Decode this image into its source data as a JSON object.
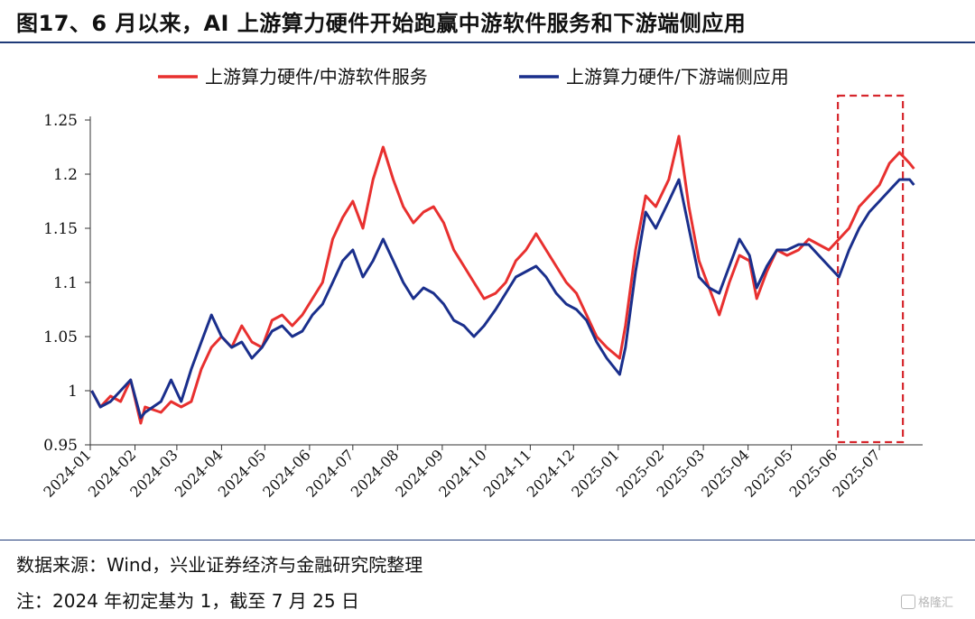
{
  "title": "图17、6 月以来，AI 上游算力硬件开始跑赢中游软件服务和下游端侧应用",
  "source": "数据来源：Wind，兴业证券经济与金融研究院整理",
  "note": "注：2024 年初定基为 1，截至 7 月 25 日",
  "watermark": "格隆汇",
  "colors": {
    "series_red": "#e8302f",
    "series_blue": "#1a2f8c",
    "highlight_box": "#d6262c",
    "rule": "#1f3a78"
  },
  "chart_data": {
    "type": "line",
    "title": "",
    "xlabel": "",
    "ylabel": "",
    "ylim": [
      0.95,
      1.25
    ],
    "yticks": [
      "0.95",
      "1",
      "1.05",
      "1.1",
      "1.15",
      "1.2",
      "1.25"
    ],
    "xticks": [
      "2024-01",
      "2024-02",
      "2024-03",
      "2024-04",
      "2024-05",
      "2024-06",
      "2024-07",
      "2024-08",
      "2024-09",
      "2024-10",
      "2024-11",
      "2024-12",
      "2025-01",
      "2025-02",
      "2025-03",
      "2025-04",
      "2025-05",
      "2025-06",
      "2025-07"
    ],
    "legend_position": "top",
    "grid": false,
    "highlight_region": {
      "from": "2025-06",
      "to": "2025-07-25"
    },
    "series": [
      {
        "name": "上游算力硬件/中游软件服务",
        "color": "#e8302f",
        "points": [
          [
            "2024-01-02",
            1.0
          ],
          [
            "2024-01-08",
            0.985
          ],
          [
            "2024-01-15",
            0.995
          ],
          [
            "2024-01-22",
            0.99
          ],
          [
            "2024-01-29",
            1.01
          ],
          [
            "2024-02-05",
            0.97
          ],
          [
            "2024-02-08",
            0.985
          ],
          [
            "2024-02-19",
            0.98
          ],
          [
            "2024-02-26",
            0.99
          ],
          [
            "2024-03-04",
            0.985
          ],
          [
            "2024-03-11",
            0.99
          ],
          [
            "2024-03-18",
            1.02
          ],
          [
            "2024-03-25",
            1.04
          ],
          [
            "2024-04-01",
            1.05
          ],
          [
            "2024-04-08",
            1.04
          ],
          [
            "2024-04-15",
            1.06
          ],
          [
            "2024-04-22",
            1.045
          ],
          [
            "2024-04-29",
            1.04
          ],
          [
            "2024-05-06",
            1.065
          ],
          [
            "2024-05-13",
            1.07
          ],
          [
            "2024-05-20",
            1.06
          ],
          [
            "2024-05-27",
            1.07
          ],
          [
            "2024-06-03",
            1.085
          ],
          [
            "2024-06-10",
            1.1
          ],
          [
            "2024-06-17",
            1.14
          ],
          [
            "2024-06-24",
            1.16
          ],
          [
            "2024-07-01",
            1.175
          ],
          [
            "2024-07-08",
            1.15
          ],
          [
            "2024-07-15",
            1.195
          ],
          [
            "2024-07-22",
            1.225
          ],
          [
            "2024-07-29",
            1.195
          ],
          [
            "2024-08-05",
            1.17
          ],
          [
            "2024-08-12",
            1.155
          ],
          [
            "2024-08-19",
            1.165
          ],
          [
            "2024-08-26",
            1.17
          ],
          [
            "2024-09-02",
            1.155
          ],
          [
            "2024-09-09",
            1.13
          ],
          [
            "2024-09-16",
            1.115
          ],
          [
            "2024-09-23",
            1.1
          ],
          [
            "2024-09-30",
            1.085
          ],
          [
            "2024-10-08",
            1.09
          ],
          [
            "2024-10-15",
            1.1
          ],
          [
            "2024-10-22",
            1.12
          ],
          [
            "2024-10-29",
            1.13
          ],
          [
            "2024-11-05",
            1.145
          ],
          [
            "2024-11-12",
            1.13
          ],
          [
            "2024-11-19",
            1.115
          ],
          [
            "2024-11-26",
            1.1
          ],
          [
            "2024-12-03",
            1.09
          ],
          [
            "2024-12-10",
            1.07
          ],
          [
            "2024-12-17",
            1.05
          ],
          [
            "2024-12-24",
            1.04
          ],
          [
            "2025-01-02",
            1.03
          ],
          [
            "2025-01-06",
            1.06
          ],
          [
            "2025-01-13",
            1.13
          ],
          [
            "2025-01-20",
            1.18
          ],
          [
            "2025-01-27",
            1.17
          ],
          [
            "2025-02-05",
            1.195
          ],
          [
            "2025-02-12",
            1.235
          ],
          [
            "2025-02-19",
            1.17
          ],
          [
            "2025-02-26",
            1.12
          ],
          [
            "2025-03-05",
            1.095
          ],
          [
            "2025-03-12",
            1.07
          ],
          [
            "2025-03-19",
            1.1
          ],
          [
            "2025-03-26",
            1.125
          ],
          [
            "2025-04-02",
            1.12
          ],
          [
            "2025-04-07",
            1.085
          ],
          [
            "2025-04-14",
            1.11
          ],
          [
            "2025-04-21",
            1.13
          ],
          [
            "2025-04-28",
            1.125
          ],
          [
            "2025-05-06",
            1.13
          ],
          [
            "2025-05-13",
            1.14
          ],
          [
            "2025-05-20",
            1.135
          ],
          [
            "2025-05-27",
            1.13
          ],
          [
            "2025-06-03",
            1.14
          ],
          [
            "2025-06-10",
            1.15
          ],
          [
            "2025-06-17",
            1.17
          ],
          [
            "2025-06-24",
            1.18
          ],
          [
            "2025-07-01",
            1.19
          ],
          [
            "2025-07-08",
            1.21
          ],
          [
            "2025-07-15",
            1.22
          ],
          [
            "2025-07-22",
            1.21
          ],
          [
            "2025-07-25",
            1.205
          ]
        ]
      },
      {
        "name": "上游算力硬件/下游端侧应用",
        "color": "#1a2f8c",
        "points": [
          [
            "2024-01-02",
            1.0
          ],
          [
            "2024-01-08",
            0.985
          ],
          [
            "2024-01-15",
            0.99
          ],
          [
            "2024-01-22",
            1.0
          ],
          [
            "2024-01-29",
            1.01
          ],
          [
            "2024-02-05",
            0.975
          ],
          [
            "2024-02-08",
            0.98
          ],
          [
            "2024-02-19",
            0.99
          ],
          [
            "2024-02-26",
            1.01
          ],
          [
            "2024-03-04",
            0.99
          ],
          [
            "2024-03-11",
            1.02
          ],
          [
            "2024-03-18",
            1.045
          ],
          [
            "2024-03-25",
            1.07
          ],
          [
            "2024-04-01",
            1.05
          ],
          [
            "2024-04-08",
            1.04
          ],
          [
            "2024-04-15",
            1.045
          ],
          [
            "2024-04-22",
            1.03
          ],
          [
            "2024-04-29",
            1.04
          ],
          [
            "2024-05-06",
            1.055
          ],
          [
            "2024-05-13",
            1.06
          ],
          [
            "2024-05-20",
            1.05
          ],
          [
            "2024-05-27",
            1.055
          ],
          [
            "2024-06-03",
            1.07
          ],
          [
            "2024-06-10",
            1.08
          ],
          [
            "2024-06-17",
            1.1
          ],
          [
            "2024-06-24",
            1.12
          ],
          [
            "2024-07-01",
            1.13
          ],
          [
            "2024-07-08",
            1.105
          ],
          [
            "2024-07-15",
            1.12
          ],
          [
            "2024-07-22",
            1.14
          ],
          [
            "2024-07-29",
            1.12
          ],
          [
            "2024-08-05",
            1.1
          ],
          [
            "2024-08-12",
            1.085
          ],
          [
            "2024-08-19",
            1.095
          ],
          [
            "2024-08-26",
            1.09
          ],
          [
            "2024-09-02",
            1.08
          ],
          [
            "2024-09-09",
            1.065
          ],
          [
            "2024-09-16",
            1.06
          ],
          [
            "2024-09-23",
            1.05
          ],
          [
            "2024-09-30",
            1.06
          ],
          [
            "2024-10-08",
            1.075
          ],
          [
            "2024-10-15",
            1.09
          ],
          [
            "2024-10-22",
            1.105
          ],
          [
            "2024-10-29",
            1.11
          ],
          [
            "2024-11-05",
            1.115
          ],
          [
            "2024-11-12",
            1.105
          ],
          [
            "2024-11-19",
            1.09
          ],
          [
            "2024-11-26",
            1.08
          ],
          [
            "2024-12-03",
            1.075
          ],
          [
            "2024-12-10",
            1.065
          ],
          [
            "2024-12-17",
            1.045
          ],
          [
            "2024-12-24",
            1.03
          ],
          [
            "2025-01-02",
            1.015
          ],
          [
            "2025-01-06",
            1.04
          ],
          [
            "2025-01-13",
            1.11
          ],
          [
            "2025-01-20",
            1.165
          ],
          [
            "2025-01-27",
            1.15
          ],
          [
            "2025-02-05",
            1.175
          ],
          [
            "2025-02-12",
            1.195
          ],
          [
            "2025-02-19",
            1.15
          ],
          [
            "2025-02-26",
            1.105
          ],
          [
            "2025-03-05",
            1.095
          ],
          [
            "2025-03-12",
            1.09
          ],
          [
            "2025-03-19",
            1.115
          ],
          [
            "2025-03-26",
            1.14
          ],
          [
            "2025-04-02",
            1.125
          ],
          [
            "2025-04-07",
            1.095
          ],
          [
            "2025-04-14",
            1.115
          ],
          [
            "2025-04-21",
            1.13
          ],
          [
            "2025-04-28",
            1.13
          ],
          [
            "2025-05-06",
            1.135
          ],
          [
            "2025-05-13",
            1.135
          ],
          [
            "2025-05-20",
            1.125
          ],
          [
            "2025-05-27",
            1.115
          ],
          [
            "2025-06-03",
            1.105
          ],
          [
            "2025-06-10",
            1.13
          ],
          [
            "2025-06-17",
            1.15
          ],
          [
            "2025-06-24",
            1.165
          ],
          [
            "2025-07-01",
            1.175
          ],
          [
            "2025-07-08",
            1.185
          ],
          [
            "2025-07-15",
            1.195
          ],
          [
            "2025-07-22",
            1.195
          ],
          [
            "2025-07-25",
            1.19
          ]
        ]
      }
    ]
  }
}
